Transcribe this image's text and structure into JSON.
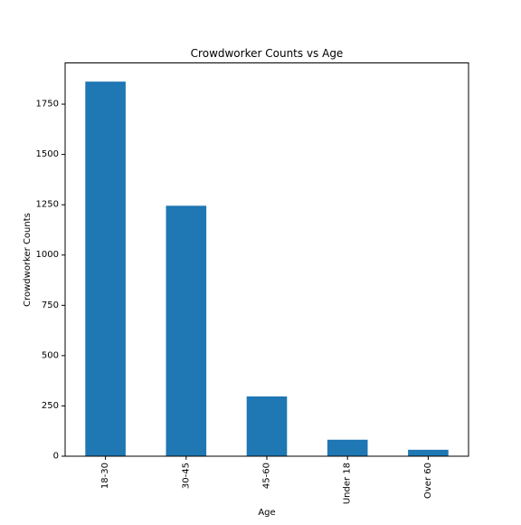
{
  "chart_data": {
    "type": "bar",
    "title": "Crowdworker Counts vs Age",
    "xlabel": "Age",
    "ylabel": "Crowdworker Counts",
    "categories": [
      "18-30",
      "30-45",
      "45-60",
      "Under 18",
      "Over 60"
    ],
    "values": [
      1862,
      1245,
      297,
      82,
      32
    ],
    "ylim": [
      0,
      1955
    ],
    "yticks": [
      0,
      250,
      500,
      750,
      1000,
      1250,
      1500,
      1750
    ],
    "grid": false,
    "legend": "none",
    "bar_color": "#1f77b4"
  }
}
